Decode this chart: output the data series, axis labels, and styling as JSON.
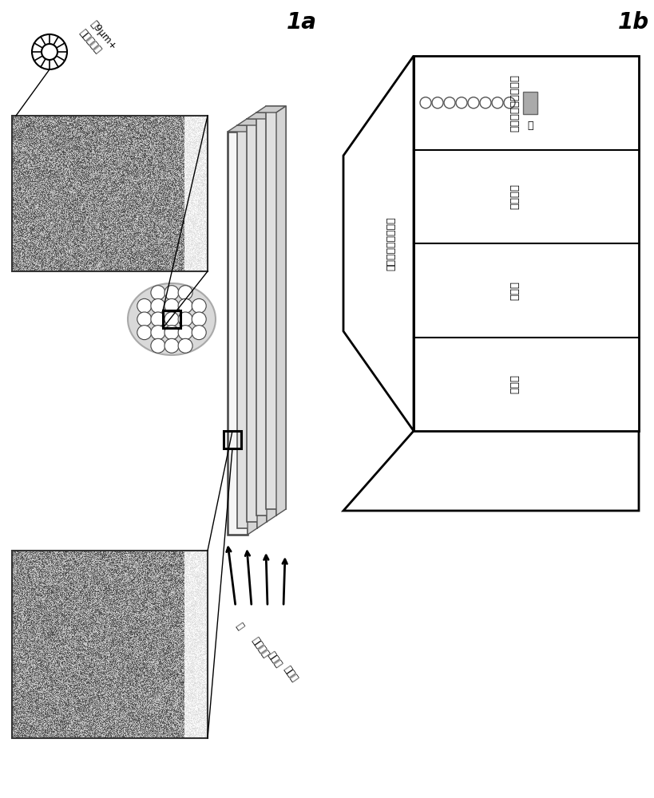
{
  "bg_color": "#ffffff",
  "label_1a": "1a",
  "label_1b": "1b",
  "bead_label_top": "珨9μm+\n抗体或抗原",
  "membrane_label": "膜",
  "release_label": "排放材料",
  "absorb_label": "吸收剂",
  "foam_label": "泡沫体",
  "bead_label_2": "具有抗体或抗原的珨",
  "membrane_label_2": "膜",
  "release_label_2": "排放材料",
  "absorb_label_2": "吸收剂",
  "foam_label_2": "泡沫体"
}
